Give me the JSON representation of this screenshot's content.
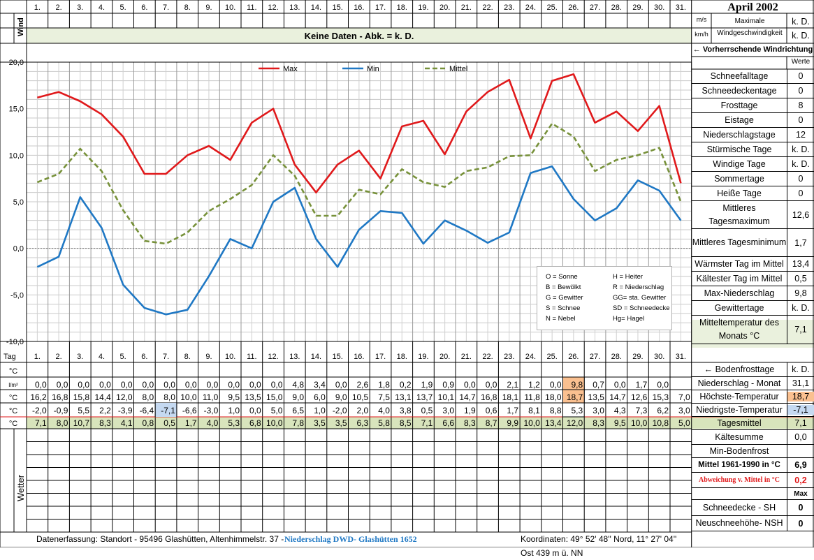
{
  "header": {
    "title": "April 2002",
    "wind_label": "Wind",
    "unit_ms": "m/s",
    "unit_kmh": "km/h",
    "max_wind_label": "Maximale Windgeschwindigkeit",
    "max_wind_val_ms": "k. D.",
    "max_wind_val_kmh": "k. D.",
    "no_data": "Keine Daten - Abk. = k. D.",
    "prevailing_wind": "← Vorherrschende Windrichtung",
    "values_header": "Werte"
  },
  "days": [
    "1.",
    "2.",
    "3.",
    "4.",
    "5.",
    "6.",
    "7.",
    "8.",
    "9.",
    "10.",
    "11.",
    "12.",
    "13.",
    "14.",
    "15.",
    "16.",
    "17.",
    "18.",
    "19.",
    "20.",
    "21.",
    "22.",
    "23.",
    "24.",
    "25.",
    "26.",
    "27.",
    "28.",
    "29.",
    "30.",
    "31."
  ],
  "chart_data": {
    "type": "line",
    "x": [
      1,
      2,
      3,
      4,
      5,
      6,
      7,
      8,
      9,
      10,
      11,
      12,
      13,
      14,
      15,
      16,
      17,
      18,
      19,
      20,
      21,
      22,
      23,
      24,
      25,
      26,
      27,
      28,
      29,
      30,
      31
    ],
    "ylim": [
      -10,
      20
    ],
    "yticks": [
      "20,0",
      "15,0",
      "10,0",
      "5,0",
      "0,0",
      "-5,0",
      "-10,0"
    ],
    "grid": true,
    "legend_position": "top",
    "series": [
      {
        "name": "Max",
        "color": "#e0191b",
        "dash": "",
        "values": [
          16.2,
          16.8,
          15.8,
          14.4,
          12.0,
          8.0,
          8.0,
          10.0,
          11.0,
          9.5,
          13.5,
          15.0,
          9.0,
          6.0,
          9.0,
          10.5,
          7.5,
          13.1,
          13.7,
          10.1,
          14.7,
          16.8,
          18.1,
          11.8,
          18.0,
          18.7,
          13.5,
          14.7,
          12.6,
          15.3,
          7.0
        ]
      },
      {
        "name": "Min",
        "color": "#1f78c4",
        "dash": "",
        "values": [
          -2.0,
          -0.9,
          5.5,
          2.2,
          -3.9,
          -6.4,
          -7.1,
          -6.6,
          -3.0,
          1.0,
          0.0,
          5.0,
          6.5,
          1.0,
          -2.0,
          2.0,
          4.0,
          3.8,
          0.5,
          3.0,
          1.9,
          0.6,
          1.7,
          8.1,
          8.8,
          5.3,
          3.0,
          4.3,
          7.3,
          6.2,
          3.0
        ]
      },
      {
        "name": "Mittel",
        "color": "#77913a",
        "dash": "7,4",
        "values": [
          7.1,
          8.0,
          10.7,
          8.3,
          4.1,
          0.8,
          0.5,
          1.7,
          4.0,
          5.3,
          6.8,
          10.0,
          7.8,
          3.5,
          3.5,
          6.3,
          5.8,
          8.5,
          7.1,
          6.6,
          8.3,
          8.7,
          9.9,
          10.0,
          13.4,
          12.0,
          8.3,
          9.5,
          10.0,
          10.8,
          5.0
        ]
      }
    ]
  },
  "weather_legend": [
    [
      "O = Sonne",
      "H = Heiter"
    ],
    [
      "B = Bewölkt",
      "R = Niederschlag"
    ],
    [
      "G = Gewitter",
      "GG= sta. Gewitter"
    ],
    [
      "S = Schnee",
      "SD = Schneedecke"
    ],
    [
      "N = Nebel",
      "Hg= Hagel"
    ]
  ],
  "table": {
    "tag_label": "Tag",
    "unit_c": "°C",
    "unit_lm2": "l/m²",
    "precip": [
      "0,0",
      "0,0",
      "0,0",
      "0,0",
      "0,0",
      "0,0",
      "0,0",
      "0,0",
      "0,0",
      "0,0",
      "0,0",
      "0,0",
      "4,8",
      "3,4",
      "0,0",
      "2,6",
      "1,8",
      "0,2",
      "1,9",
      "0,9",
      "0,0",
      "0,0",
      "2,1",
      "1,2",
      "0,0",
      "9,8",
      "0,7",
      "0,0",
      "1,7",
      "0,0",
      ""
    ],
    "max": [
      "16,2",
      "16,8",
      "15,8",
      "14,4",
      "12,0",
      "8,0",
      "8,0",
      "10,0",
      "11,0",
      "9,5",
      "13,5",
      "15,0",
      "9,0",
      "6,0",
      "9,0",
      "10,5",
      "7,5",
      "13,1",
      "13,7",
      "10,1",
      "14,7",
      "16,8",
      "18,1",
      "11,8",
      "18,0",
      "18,7",
      "13,5",
      "14,7",
      "12,6",
      "15,3",
      "7,0"
    ],
    "min": [
      "-2,0",
      "-0,9",
      "5,5",
      "2,2",
      "-3,9",
      "-6,4",
      "-7,1",
      "-6,6",
      "-3,0",
      "1,0",
      "0,0",
      "5,0",
      "6,5",
      "1,0",
      "-2,0",
      "2,0",
      "4,0",
      "3,8",
      "0,5",
      "3,0",
      "1,9",
      "0,6",
      "1,7",
      "8,1",
      "8,8",
      "5,3",
      "3,0",
      "4,3",
      "7,3",
      "6,2",
      "3,0"
    ],
    "mean": [
      "7,1",
      "8,0",
      "10,7",
      "8,3",
      "4,1",
      "0,8",
      "0,5",
      "1,7",
      "4,0",
      "5,3",
      "6,8",
      "10,0",
      "7,8",
      "3,5",
      "3,5",
      "6,3",
      "5,8",
      "8,5",
      "7,1",
      "6,6",
      "8,3",
      "8,7",
      "9,9",
      "10,0",
      "13,4",
      "12,0",
      "8,3",
      "9,5",
      "10,0",
      "10,8",
      "5,0"
    ],
    "weather_label": "Wetter"
  },
  "stats": [
    {
      "label": "Schneefalltage",
      "value": "0"
    },
    {
      "label": "Schneedeckentage",
      "value": "0"
    },
    {
      "label": "Frosttage",
      "value": "8"
    },
    {
      "label": "Eistage",
      "value": "0"
    },
    {
      "label": "Niederschlagstage",
      "value": "12"
    },
    {
      "label": "Stürmische Tage",
      "value": "k. D."
    },
    {
      "label": "Windige Tage",
      "value": "k. D."
    },
    {
      "label": "Sommertage",
      "value": "0"
    },
    {
      "label": "Heiße Tage",
      "value": "0"
    },
    {
      "label": "Mittleres Tagesmaximum",
      "value": "12,6"
    },
    {
      "label": "Mittleres Tagesminimum",
      "value": "1,7"
    },
    {
      "label": "Wärmster Tag im Mittel",
      "value": "13,4"
    },
    {
      "label": "Kältester Tag im Mittel",
      "value": "0,5"
    },
    {
      "label": "Max-Niederschlag",
      "value": "9,8"
    },
    {
      "label": "Gewittertage",
      "value": "k. D."
    },
    {
      "label": "Mitteltemperatur des Monats °C",
      "value": "7,1"
    }
  ],
  "lower_stats": [
    {
      "label": "← Bodenfrosttage",
      "value": "k. D."
    },
    {
      "label": "Niederschlag - Monat",
      "value": "31,1"
    },
    {
      "label": "Höchste-Temperatur",
      "value": "18,7"
    },
    {
      "label": "Niedrigste-Temperatur",
      "value": "-7,1"
    },
    {
      "label": "Tagesmittel",
      "value": "7,1"
    },
    {
      "label": "Kältesumme",
      "value": "0,0"
    },
    {
      "label": "Min-Bodenfrost",
      "value": ""
    },
    {
      "label": "Mittel 1961-1990 in °C",
      "value": "6,9"
    },
    {
      "label": "Abweichung v. Mittel in °C",
      "value": "0,2"
    },
    {
      "label": "",
      "value": "Max"
    },
    {
      "label": "Schneedecke -   SH",
      "value": "0"
    },
    {
      "label": "Neuschneehöhe- NSH",
      "value": "0"
    }
  ],
  "footer": {
    "collection": "Datenerfassung:  Standort -   95496  Glashütten, Altenhimmelstr. 37 -",
    "precip_source": " Niederschlag DWD- Glashütten 1652",
    "coords": "Koordinaten:  49° 52' 48'' Nord,    11° 27' 04'' Ost   439 m ü. NN"
  },
  "colors": {
    "header_green": "#eaf1dd",
    "mean_green": "#d8e4bc",
    "warm_highlight": "#fac090",
    "cold_highlight": "#c5d9f1",
    "deviation_red": "#e0191b"
  }
}
